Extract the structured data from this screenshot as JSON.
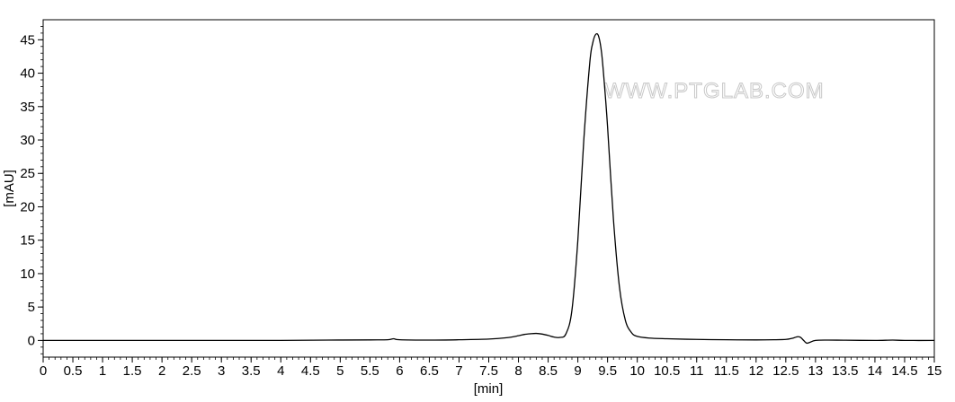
{
  "watermark": "WWW.PTGLAB.COM",
  "chart_data": {
    "type": "line",
    "title": "",
    "xlabel": "[min]",
    "ylabel": "[mAU]",
    "xlim": [
      0,
      15
    ],
    "ylim": [
      -2.5,
      48
    ],
    "x_ticks": [
      0,
      0.5,
      1,
      1.5,
      2,
      2.5,
      3,
      3.5,
      4,
      4.5,
      5,
      5.5,
      6,
      6.5,
      7,
      7.5,
      8,
      8.5,
      9,
      9.5,
      10,
      10.5,
      11,
      11.5,
      12,
      12.5,
      13,
      13.5,
      14,
      14.5,
      15
    ],
    "x_tick_labels": [
      "0",
      "0.5",
      "1",
      "1.5",
      "2",
      "2.5",
      "3",
      "3.5",
      "4",
      "4.5",
      "5",
      "5.5",
      "6",
      "6.5",
      "7",
      "7.5",
      "8",
      "8.5",
      "9",
      "9.5",
      "10",
      "10.5",
      "11",
      "11.5",
      "12",
      "12.5",
      "13",
      "13.5",
      "14",
      "14.5",
      "15"
    ],
    "y_ticks": [
      0,
      5,
      10,
      15,
      20,
      25,
      30,
      35,
      40,
      45
    ],
    "y_tick_labels": [
      "0",
      "5",
      "10",
      "15",
      "20",
      "25",
      "30",
      "35",
      "40",
      "45"
    ],
    "grid": false,
    "series": [
      {
        "color": "#000000",
        "x": [
          0,
          1,
          2,
          3,
          4,
          4.8,
          5.5,
          5.8,
          5.9,
          6.0,
          6.5,
          7.0,
          7.5,
          7.8,
          8.0,
          8.1,
          8.2,
          8.3,
          8.4,
          8.5,
          8.6,
          8.7,
          8.8,
          8.9,
          9.0,
          9.1,
          9.2,
          9.25,
          9.3,
          9.35,
          9.4,
          9.45,
          9.5,
          9.6,
          9.7,
          9.8,
          9.9,
          10.0,
          10.2,
          10.5,
          11.0,
          11.5,
          12.0,
          12.3,
          12.5,
          12.6,
          12.7,
          12.75,
          12.8,
          12.85,
          12.9,
          13.0,
          13.2,
          13.5,
          14.0,
          14.3,
          14.5,
          15.0
        ],
        "y": [
          0,
          0,
          0,
          0,
          0,
          0.05,
          0.08,
          0.1,
          0.25,
          0.1,
          0.05,
          0.1,
          0.2,
          0.4,
          0.7,
          0.9,
          1.0,
          1.05,
          0.95,
          0.75,
          0.5,
          0.45,
          1.0,
          4.5,
          15.0,
          30.0,
          41.5,
          44.5,
          45.8,
          45.5,
          43.0,
          38.0,
          32.0,
          18.0,
          8.0,
          3.0,
          1.2,
          0.6,
          0.35,
          0.25,
          0.15,
          0.1,
          0.08,
          0.1,
          0.15,
          0.3,
          0.55,
          0.45,
          0.0,
          -0.4,
          -0.3,
          0.0,
          0.05,
          0.03,
          0.0,
          0.05,
          0.0,
          0.0
        ]
      }
    ]
  }
}
